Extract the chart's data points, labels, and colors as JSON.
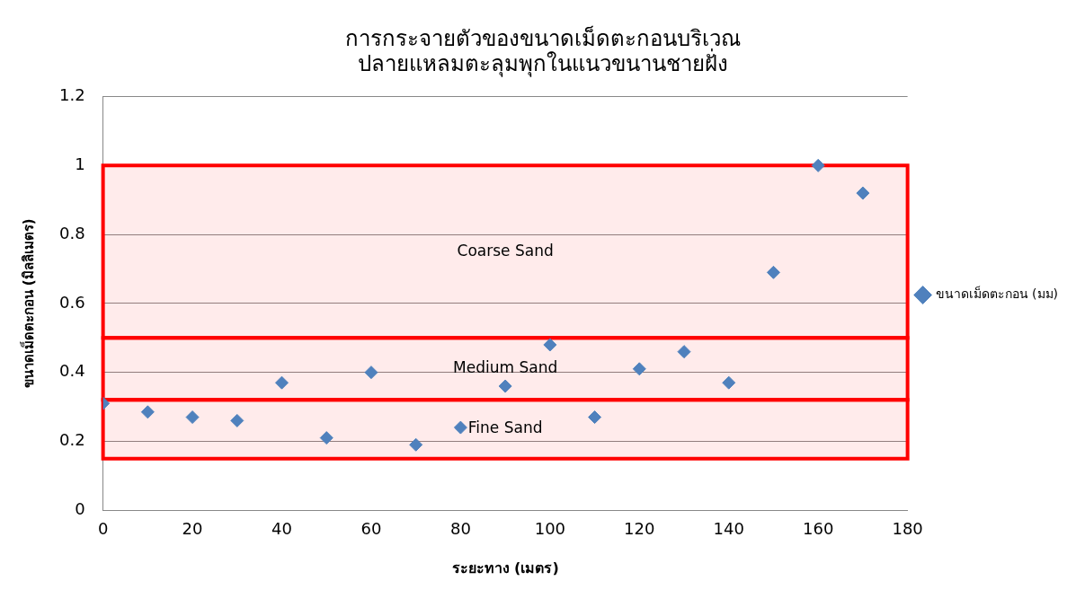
{
  "chart_data": {
    "type": "scatter",
    "title": "การกระจายตัวของขนาดเม็ดตะกอนบริเวณ\nปลายแหลมตะลุมพุกในแนวขนานชายฝั่ง",
    "xlabel": "ระยะทาง (เมตร)",
    "ylabel": "ขนาดเม็ดตะกอน (มิลลิเมตร)",
    "x": [
      0,
      10,
      20,
      30,
      40,
      50,
      60,
      70,
      80,
      90,
      100,
      110,
      120,
      130,
      140,
      150,
      160,
      170
    ],
    "series": [
      {
        "name": "ขนาดเม็ดตะกอน (มม)",
        "color": "#4f81bd",
        "values": [
          0.31,
          0.285,
          0.27,
          0.26,
          0.37,
          0.21,
          0.4,
          0.19,
          0.24,
          0.36,
          0.48,
          0.27,
          0.41,
          0.46,
          0.37,
          0.69,
          1.0,
          0.92
        ]
      }
    ],
    "xlim": [
      0,
      180
    ],
    "xticks": [
      0,
      20,
      40,
      60,
      80,
      100,
      120,
      140,
      160,
      180
    ],
    "ylim": [
      0,
      1.2
    ],
    "yticks": [
      0,
      0.2,
      0.4,
      0.6,
      0.8,
      1,
      1.2
    ],
    "bands": [
      {
        "axis": "y",
        "from": 0.5,
        "to": 1.0,
        "label": "Coarse Sand",
        "color": "#ff0000"
      },
      {
        "axis": "y",
        "from": 0.32,
        "to": 0.5,
        "label": "Medium Sand",
        "color": "#ff0000"
      },
      {
        "axis": "y",
        "from": 0.15,
        "to": 0.32,
        "label": "Fine Sand",
        "color": "#ff0000"
      }
    ],
    "grid": "y",
    "legend": "right",
    "marker": "diamond"
  }
}
